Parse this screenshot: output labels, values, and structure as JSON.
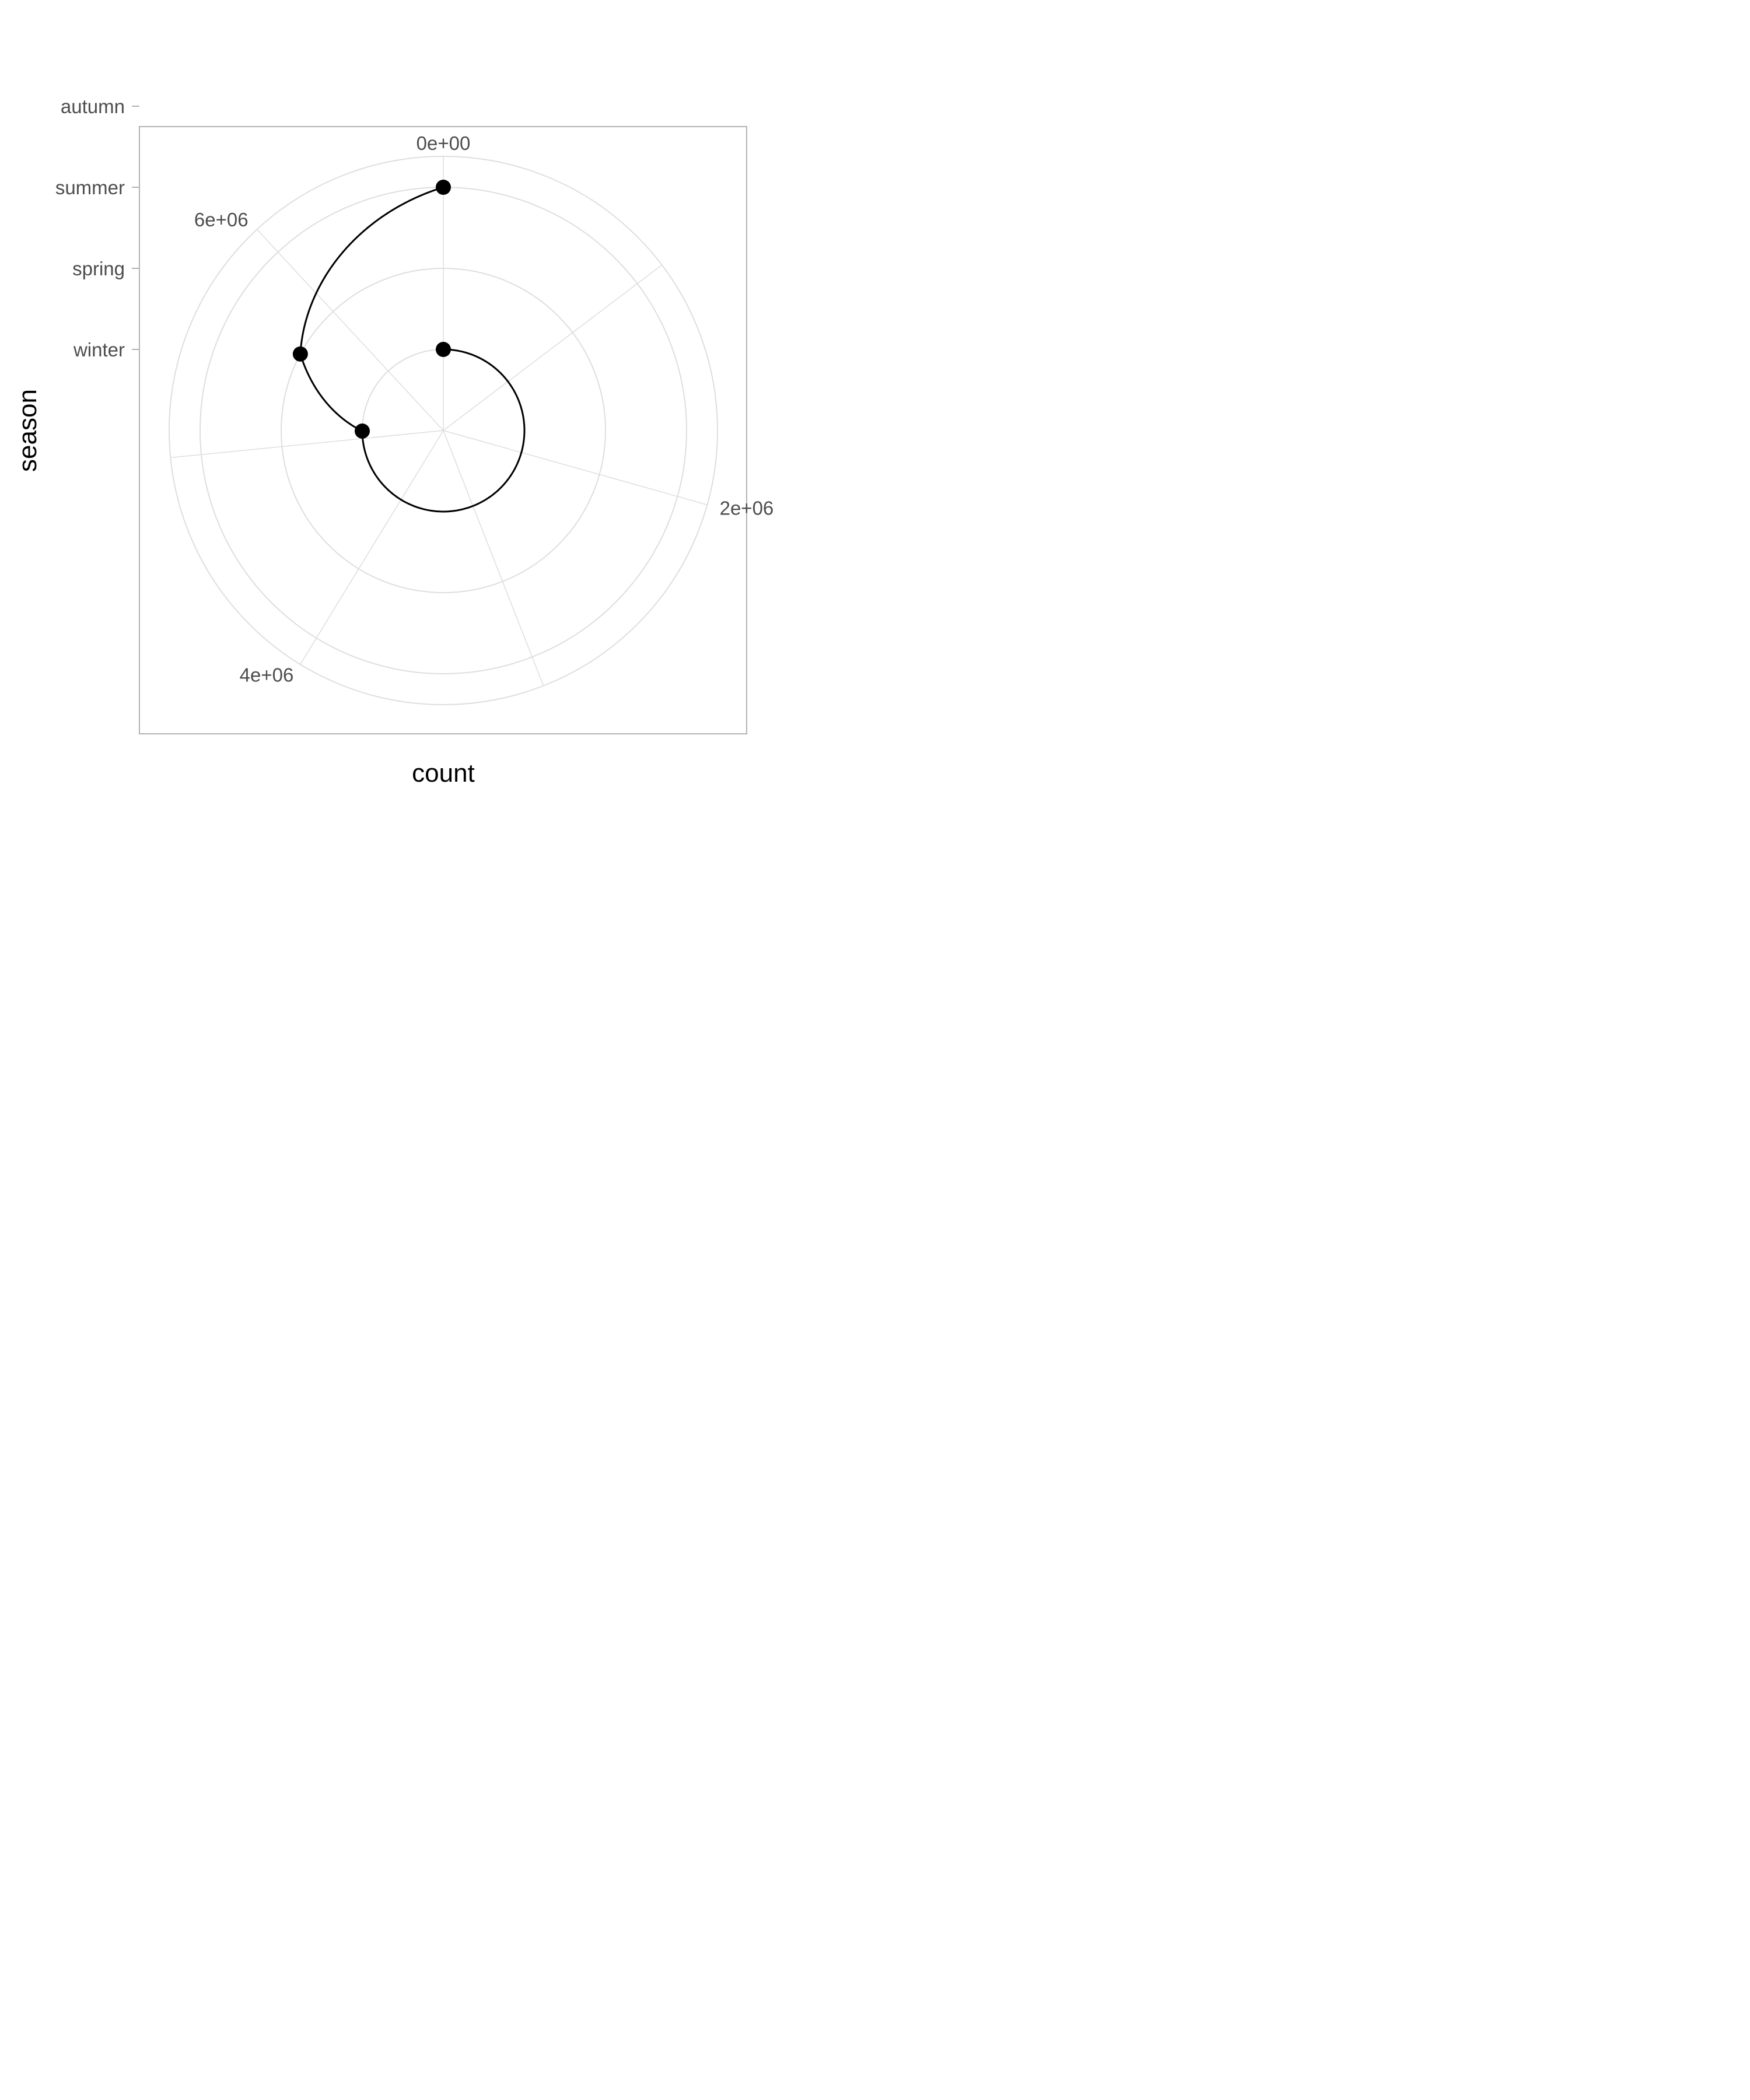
{
  "chart_data": {
    "type": "line",
    "coord": "polar",
    "xlabel": "count",
    "ylabel": "season",
    "x_ticks": [
      "0e+00",
      "2e+06",
      "4e+06",
      "6e+06"
    ],
    "x_tick_values": [
      0,
      2000000,
      4000000,
      6000000
    ],
    "x_range": [
      0,
      6810000
    ],
    "y_categories": [
      "winter",
      "spring",
      "summer",
      "autumn"
    ],
    "series": [
      {
        "points": [
          {
            "season": "winter",
            "count": 0
          },
          {
            "season": "winter",
            "count": 5100000
          },
          {
            "season": "spring",
            "count": 5640000
          },
          {
            "season": "summer",
            "count": 6810000
          }
        ]
      }
    ],
    "grid": true,
    "colors": {
      "line": "#000000",
      "grid": "#dedede",
      "border": "#b3b3b3",
      "text": "#4d4d4d"
    }
  }
}
